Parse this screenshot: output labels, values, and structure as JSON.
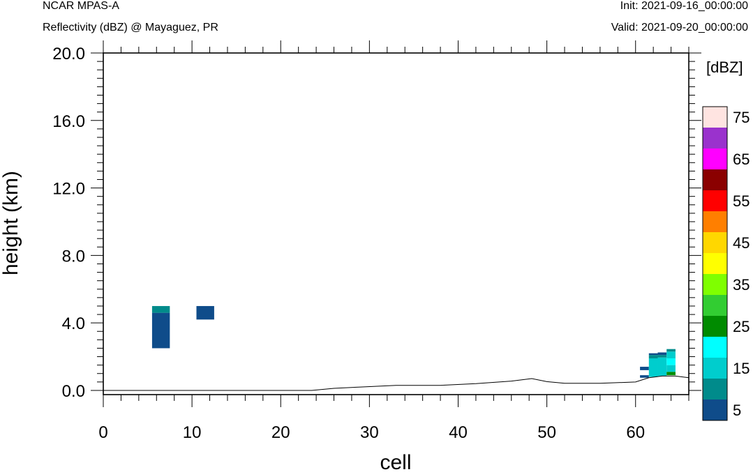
{
  "header": {
    "left_line1": "NCAR MPAS-A",
    "left_line2": "Reflectivity (dBZ) @ Mayaguez, PR",
    "right_line1": "Init: 2021-09-16_00:00:00",
    "right_line2": "Valid: 2021-09-20_00:00:00"
  },
  "chart_data": {
    "type": "heatmap",
    "xlabel": "cell",
    "ylabel": "height (km)",
    "xlim": [
      0,
      66
    ],
    "ylim": [
      -0.25,
      20.0
    ],
    "x_ticks": [
      0,
      10,
      20,
      30,
      40,
      50,
      60
    ],
    "y_ticks": [
      0.0,
      4.0,
      8.0,
      12.0,
      16.0,
      20.0
    ],
    "y_tick_labels": [
      "0.0",
      "4.0",
      "8.0",
      "12.0",
      "16.0",
      "20.0"
    ],
    "grid": false,
    "colorbar": {
      "title": "[dBZ]",
      "levels": [
        5,
        10,
        15,
        20,
        25,
        30,
        35,
        40,
        45,
        50,
        55,
        60,
        65,
        70,
        75
      ],
      "labels": [
        "5",
        "15",
        "25",
        "35",
        "45",
        "55",
        "65",
        "75"
      ],
      "colors": [
        "#0f4c8a",
        "#008b8b",
        "#00cdcd",
        "#00ffff",
        "#008b00",
        "#32cd32",
        "#7fff00",
        "#ffff00",
        "#ffd700",
        "#ff7f00",
        "#ff0000",
        "#8b0000",
        "#ff00ff",
        "#9a32cd",
        "#ffe4e1"
      ]
    },
    "cells": [
      {
        "x0": 5.5,
        "x1": 7.5,
        "y0": 2.5,
        "y1": 4.6,
        "dbz": 5
      },
      {
        "x0": 5.5,
        "x1": 7.5,
        "y0": 4.6,
        "y1": 5.0,
        "dbz": 10
      },
      {
        "x0": 10.5,
        "x1": 12.5,
        "y0": 4.2,
        "y1": 5.0,
        "dbz": 5
      },
      {
        "x0": 60.5,
        "x1": 61.5,
        "y0": 1.2,
        "y1": 1.4,
        "dbz": 5
      },
      {
        "x0": 60.5,
        "x1": 61.5,
        "y0": 0.75,
        "y1": 0.9,
        "dbz": 5
      },
      {
        "x0": 61.5,
        "x1": 62.5,
        "y0": 0.8,
        "y1": 1.9,
        "dbz": 15
      },
      {
        "x0": 61.5,
        "x1": 62.5,
        "y0": 1.9,
        "y1": 2.1,
        "dbz": 10
      },
      {
        "x0": 61.5,
        "x1": 62.5,
        "y0": 2.1,
        "y1": 2.2,
        "dbz": 5
      },
      {
        "x0": 62.5,
        "x1": 63.5,
        "y0": 0.85,
        "y1": 1.95,
        "dbz": 15
      },
      {
        "x0": 62.5,
        "x1": 63.5,
        "y0": 1.95,
        "y1": 2.1,
        "dbz": 10
      },
      {
        "x0": 62.5,
        "x1": 63.5,
        "y0": 2.1,
        "y1": 2.25,
        "dbz": 5
      },
      {
        "x0": 63.5,
        "x1": 64.5,
        "y0": 0.9,
        "y1": 1.1,
        "dbz": 25
      },
      {
        "x0": 63.5,
        "x1": 64.5,
        "y0": 1.1,
        "y1": 1.5,
        "dbz": 15
      },
      {
        "x0": 63.5,
        "x1": 64.5,
        "y0": 1.5,
        "y1": 1.9,
        "dbz": 20
      },
      {
        "x0": 63.5,
        "x1": 64.5,
        "y0": 1.9,
        "y1": 2.3,
        "dbz": 15
      },
      {
        "x0": 63.5,
        "x1": 64.5,
        "y0": 2.3,
        "y1": 2.45,
        "dbz": 10
      }
    ],
    "terrain": [
      [
        0,
        0.0
      ],
      [
        23.5,
        0.0
      ],
      [
        26,
        0.12
      ],
      [
        29,
        0.2
      ],
      [
        33,
        0.3
      ],
      [
        38,
        0.3
      ],
      [
        42,
        0.4
      ],
      [
        46,
        0.55
      ],
      [
        48.3,
        0.7
      ],
      [
        50,
        0.52
      ],
      [
        52,
        0.42
      ],
      [
        56,
        0.42
      ],
      [
        60,
        0.5
      ],
      [
        61.5,
        0.75
      ],
      [
        63,
        0.85
      ],
      [
        64.5,
        0.85
      ],
      [
        66,
        0.75
      ]
    ]
  }
}
